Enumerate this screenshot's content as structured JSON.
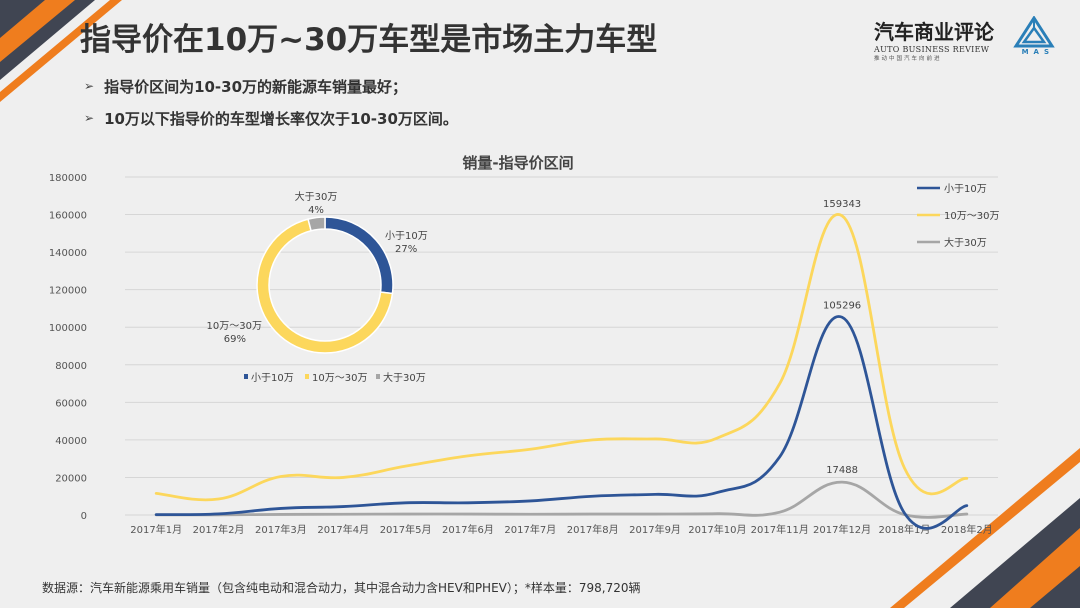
{
  "title": "指导价在10万~30万车型是市场主力车型",
  "brand": {
    "name": "汽车商业评论",
    "en": "AUTO BUSINESS REVIEW",
    "slogan": "推动中国汽车向前进",
    "logo_text": "MAS",
    "logo_icon": "triangle-logo-icon"
  },
  "bullets": [
    "指导价区间为10-30万的新能源车销量最好；",
    "10万以下指导价的车型增长率仅次于10-30万区间。"
  ],
  "colors": {
    "blue": "#2e5597",
    "yellow": "#fcd75c",
    "gray": "#a6a6a6",
    "orange": "#ef7d1e",
    "dark": "#404552"
  },
  "footer": "数据源：汽车新能源乘用车销量（包含纯电动和混合动力，其中混合动力含HEV和PHEV）；*样本量：798,720辆",
  "chart_data": [
    {
      "type": "line",
      "title": "销量-指导价区间",
      "categories": [
        "2017年1月",
        "2017年2月",
        "2017年3月",
        "2017年4月",
        "2017年5月",
        "2017年6月",
        "2017年7月",
        "2017年8月",
        "2017年9月",
        "2017年10月",
        "2017年11月",
        "2017年12月",
        "2018年1月",
        "2018年2月"
      ],
      "ylim": [
        0,
        180000
      ],
      "yticks": [
        "0",
        "20000",
        "40000",
        "60000",
        "80000",
        "100000",
        "120000",
        "140000",
        "160000",
        "180000"
      ],
      "series": [
        {
          "name": "小于10万",
          "color": "#2e5597",
          "values": [
            200,
            600,
            3500,
            4500,
            6500,
            6500,
            7500,
            10000,
            11000,
            12000,
            31000,
            105296,
            1000,
            5000
          ]
        },
        {
          "name": "10万～30万",
          "color": "#fcd75c",
          "values": [
            11500,
            8500,
            20500,
            20000,
            26000,
            31500,
            35000,
            40000,
            40500,
            41000,
            70000,
            159343,
            25000,
            19500
          ]
        },
        {
          "name": "大于30万",
          "color": "#a6a6a6",
          "values": [
            100,
            100,
            300,
            400,
            500,
            500,
            400,
            500,
            500,
            700,
            1500,
            17488,
            200,
            500
          ]
        }
      ],
      "data_labels": [
        {
          "series": 1,
          "index": 11,
          "text": "159343"
        },
        {
          "series": 0,
          "index": 11,
          "text": "105296"
        },
        {
          "series": 2,
          "index": 11,
          "text": "17488"
        }
      ],
      "legend": [
        "小于10万",
        "10万～30万",
        "大于30万"
      ],
      "legend_position": "top-right"
    },
    {
      "type": "pie",
      "variant": "donut",
      "slices": [
        {
          "name": "小于10万",
          "percent": 27,
          "label": "27%",
          "color": "#2e5597"
        },
        {
          "name": "10万～30万",
          "percent": 69,
          "label": "69%",
          "color": "#fcd75c"
        },
        {
          "name": "大于30万",
          "percent": 4,
          "label": "4%",
          "color": "#a6a6a6"
        }
      ],
      "legend": [
        "小于10万",
        "10万～30万",
        "大于30万"
      ],
      "legend_position": "bottom"
    }
  ]
}
